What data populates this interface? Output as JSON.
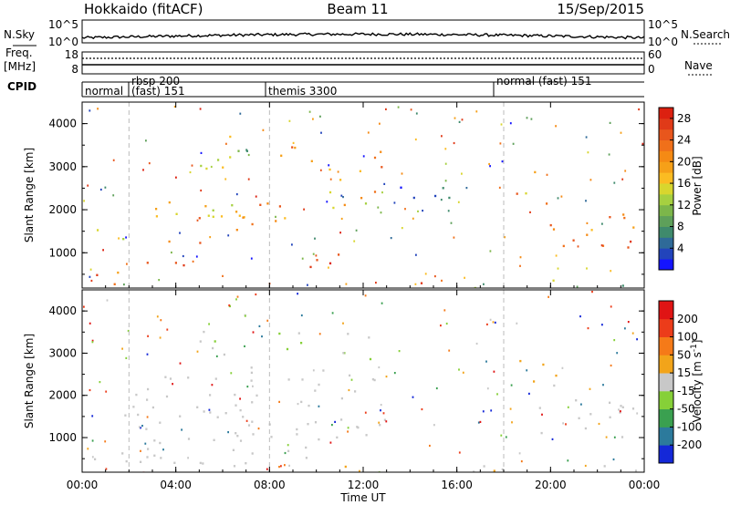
{
  "header": {
    "title": "Hokkaido (fitACF)",
    "beam": "Beam 11",
    "date": "15/Sep/2015"
  },
  "top_panels": {
    "nsky_label": "N.Sky",
    "nsky_ticks": [
      "10^5",
      "10^0"
    ],
    "nsearch_label": "N.Search",
    "nsearch_ticks": [
      "10^5",
      "10^0"
    ],
    "freq_label": "Freq.",
    "freq_unit": "[MHz]",
    "freq_ticks": [
      "18",
      "8"
    ],
    "nave_label": "Nave",
    "nave_ticks": [
      "60",
      "0"
    ],
    "cpid_label": "CPID",
    "cpid_segments": [
      {
        "label": "normal",
        "start_hour": 0.0
      },
      {
        "label": "rbsp 200",
        "start_hour": 2.0
      },
      {
        "label": "(fast) 151",
        "start_hour": 2.0
      },
      {
        "label": "themis 3300",
        "start_hour": 8.0
      },
      {
        "label": "normal (fast) 151",
        "start_hour": 18.0
      }
    ]
  },
  "chart_data": [
    {
      "type": "heatmap",
      "title": "",
      "xlabel": "Time UT",
      "ylabel": "Slant Range [km]",
      "xlim": [
        0,
        24
      ],
      "ylim": [
        180,
        4500
      ],
      "x_ticks": [
        "00:00",
        "04:00",
        "08:00",
        "12:00",
        "16:00",
        "20:00",
        "00:00"
      ],
      "y_ticks": [
        "1000",
        "2000",
        "3000",
        "4000"
      ],
      "mode_boundaries_hours": [
        2.0,
        8.0,
        18.0
      ],
      "colorbar": {
        "label": "Power [dB]",
        "ticks": [
          "4",
          "8",
          "12",
          "16",
          "20",
          "24",
          "28"
        ],
        "range": [
          0,
          30
        ],
        "colors": [
          "#1414ff",
          "#2244bb",
          "#2f6a98",
          "#3f8a6c",
          "#5ea05a",
          "#7cb64a",
          "#a6d040",
          "#d8d62e",
          "#fbbc22",
          "#f6a018",
          "#f58a14",
          "#f0701a",
          "#e8561c",
          "#e03a18",
          "#dc2010"
        ]
      },
      "regions": [
        {
          "t": [
            0.0,
            2.0
          ],
          "r": [
            200,
            400
          ],
          "value": 22
        },
        {
          "t": [
            0.2,
            1.0
          ],
          "r": [
            1400,
            1700
          ],
          "value": 12
        },
        {
          "t": [
            1.0,
            2.0
          ],
          "r": [
            1200,
            1700
          ],
          "value": 16
        },
        {
          "t": [
            0.5,
            2.5
          ],
          "r": [
            450,
            800
          ],
          "value": 24
        },
        {
          "t": [
            2.5,
            5.0
          ],
          "r": [
            400,
            800
          ],
          "value": 22
        },
        {
          "t": [
            3.0,
            7.5
          ],
          "r": [
            1200,
            2200
          ],
          "value": 20
        },
        {
          "t": [
            5.0,
            7.0
          ],
          "r": [
            1800,
            2600
          ],
          "value": 18
        },
        {
          "t": [
            5.0,
            7.0
          ],
          "r": [
            2800,
            3700
          ],
          "value": 14
        },
        {
          "t": [
            6.2,
            7.2
          ],
          "r": [
            3200,
            4200
          ],
          "value": 12
        },
        {
          "t": [
            7.0,
            9.5
          ],
          "r": [
            1400,
            2200
          ],
          "value": 22
        },
        {
          "t": [
            8.2,
            10.0
          ],
          "r": [
            2900,
            3600
          ],
          "value": 20
        },
        {
          "t": [
            8.5,
            11.0
          ],
          "r": [
            500,
            1000
          ],
          "value": 28
        },
        {
          "t": [
            10.0,
            12.5
          ],
          "r": [
            2000,
            3000
          ],
          "value": 18
        },
        {
          "t": [
            11.5,
            12.8
          ],
          "r": [
            2300,
            3700
          ],
          "value": 22
        },
        {
          "t": [
            12.0,
            15.0
          ],
          "r": [
            250,
            400
          ],
          "value": 24
        },
        {
          "t": [
            15.0,
            18.0
          ],
          "r": [
            200,
            320
          ],
          "value": 8
        },
        {
          "t": [
            13.5,
            17.5
          ],
          "r": [
            2300,
            2700
          ],
          "value": 4
        },
        {
          "t": [
            18.3,
            20.0
          ],
          "r": [
            2100,
            3000
          ],
          "value": 20
        },
        {
          "t": [
            19.5,
            24.0
          ],
          "r": [
            1000,
            2000
          ],
          "value": 22
        },
        {
          "t": [
            20.0,
            24.0
          ],
          "r": [
            200,
            400
          ],
          "value": 10
        }
      ]
    },
    {
      "type": "heatmap",
      "title": "",
      "xlabel": "Time UT",
      "ylabel": "Slant Range [km]",
      "xlim": [
        0,
        24
      ],
      "ylim": [
        180,
        4500
      ],
      "x_ticks": [
        "00:00",
        "04:00",
        "08:00",
        "12:00",
        "16:00",
        "20:00",
        "00:00"
      ],
      "y_ticks": [
        "1000",
        "2000",
        "3000",
        "4000"
      ],
      "mode_boundaries_hours": [
        2.0,
        8.0,
        18.0
      ],
      "colorbar": {
        "label": "Velocity [m s^-1]",
        "ticks": [
          "200",
          "100",
          "50",
          "15",
          "-15",
          "-50",
          "-100",
          "-200"
        ],
        "range": [
          -250,
          250
        ],
        "colors": [
          "#1428d8",
          "#2c7a9c",
          "#3aa050",
          "#86d038",
          "#c8c8c8",
          "#f2a41a",
          "#f57a18",
          "#ec3c1a",
          "#e01414"
        ]
      },
      "regions": [
        {
          "t": [
            0.0,
            7.5
          ],
          "r": [
            300,
            1800
          ],
          "value": 0
        },
        {
          "t": [
            2.0,
            8.0
          ],
          "r": [
            1500,
            2500
          ],
          "value": 0
        },
        {
          "t": [
            5.0,
            7.0
          ],
          "r": [
            2800,
            3600
          ],
          "value": -20
        },
        {
          "t": [
            6.2,
            7.2
          ],
          "r": [
            3400,
            4200
          ],
          "value": -40
        },
        {
          "t": [
            7.0,
            13.0
          ],
          "r": [
            1000,
            2800
          ],
          "value": 0
        },
        {
          "t": [
            8.0,
            12.5
          ],
          "r": [
            2800,
            3500
          ],
          "value": -30
        },
        {
          "t": [
            8.5,
            11.0
          ],
          "r": [
            500,
            1000
          ],
          "value": 0
        },
        {
          "t": [
            10.0,
            18.0
          ],
          "r": [
            200,
            400
          ],
          "value": 40
        },
        {
          "t": [
            18.3,
            20.5
          ],
          "r": [
            2200,
            3000
          ],
          "value": 40
        },
        {
          "t": [
            19.5,
            24.0
          ],
          "r": [
            1000,
            2000
          ],
          "value": 0
        },
        {
          "t": [
            20.0,
            24.0
          ],
          "r": [
            200,
            400
          ],
          "value": 0
        }
      ]
    }
  ]
}
